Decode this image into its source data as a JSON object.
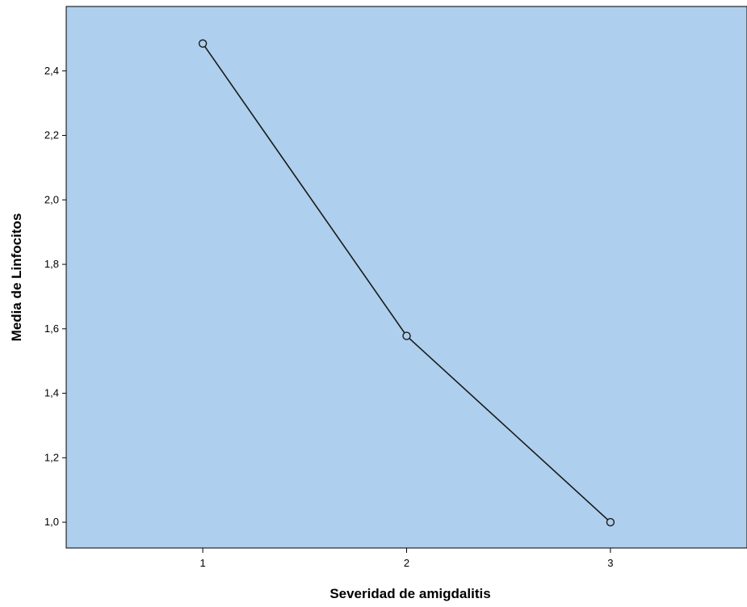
{
  "chart_data": {
    "type": "line",
    "xlabel": "Severidad de amigdalitis",
    "ylabel": "Media de Linfocitos",
    "x": [
      1,
      2,
      3
    ],
    "x_tick_labels": [
      "1",
      "2",
      "3"
    ],
    "series": [
      {
        "values": [
          2.485,
          1.578,
          1.0
        ]
      }
    ],
    "xlim": [
      0.33,
      3.67
    ],
    "ylim": [
      0.92,
      2.6
    ],
    "y_ticks": [
      1.0,
      1.2,
      1.4,
      1.6,
      1.8,
      2.0,
      2.2,
      2.4
    ],
    "y_tick_labels": [
      "1,0",
      "1,2",
      "1,4",
      "1,6",
      "1,8",
      "2,0",
      "2,2",
      "2,4"
    ],
    "grid": false,
    "legend": "none",
    "colors": {
      "plot_background": "#aecfed",
      "line": "#1a1a1a",
      "marker_fill": "#aecfed",
      "axes": "#000000"
    }
  }
}
